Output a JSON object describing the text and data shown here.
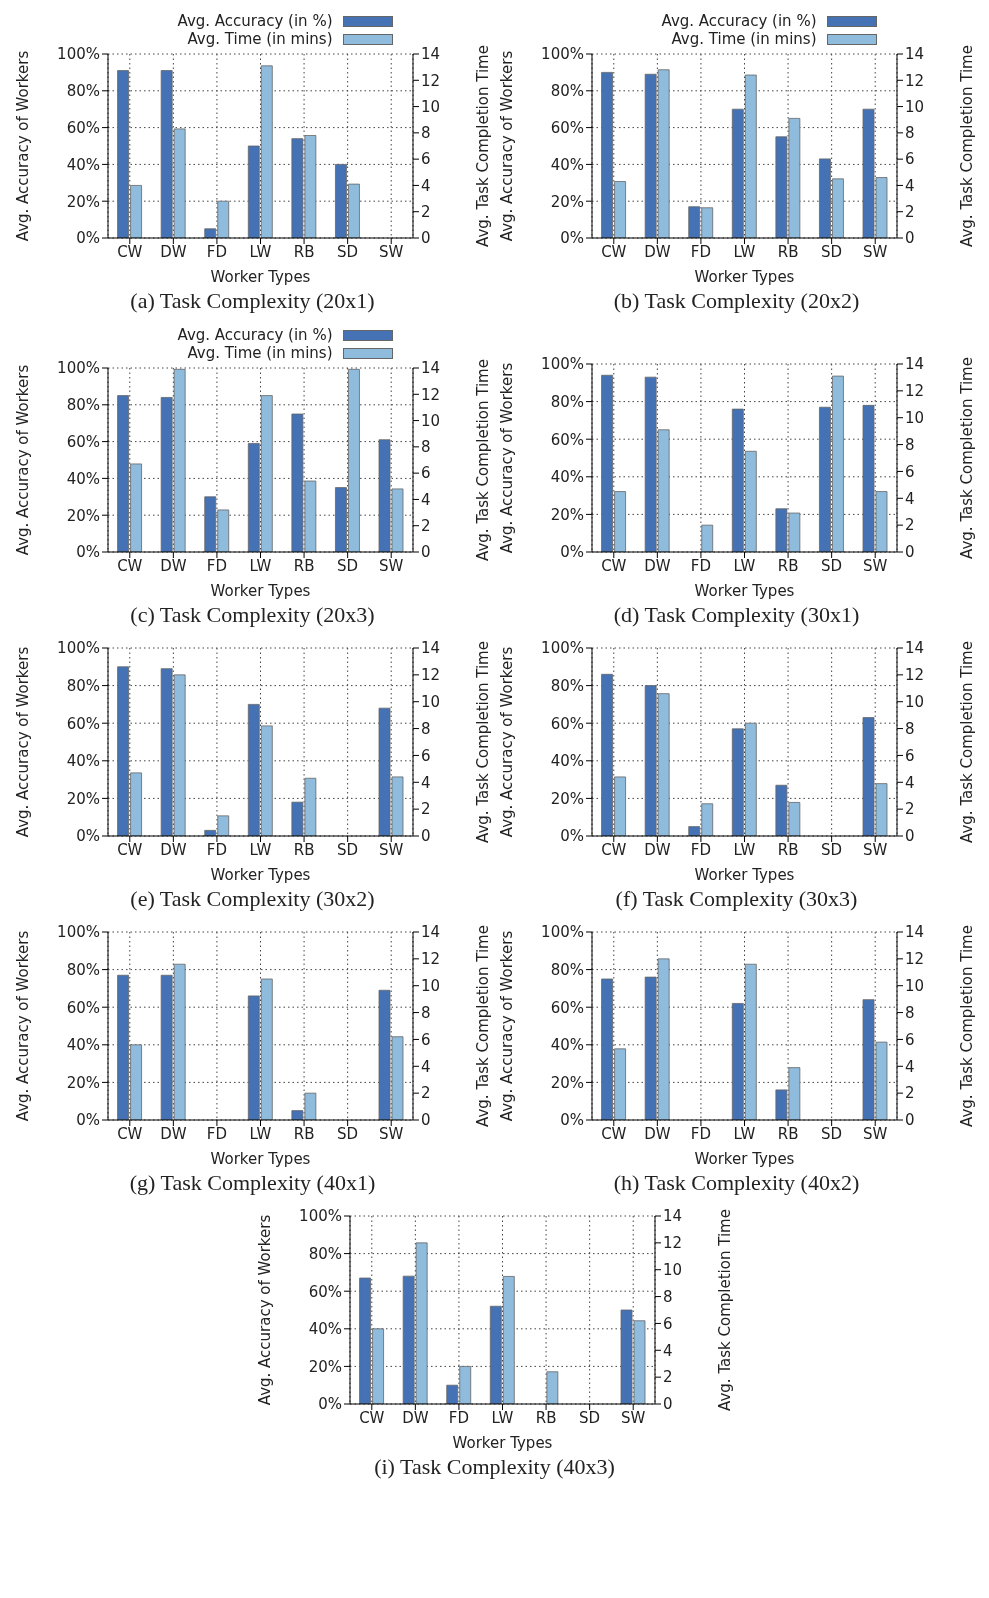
{
  "chart_data": [
    {
      "type": "bar",
      "title": "(a)  Task Complexity (20x1)",
      "xlabel": "Worker Types",
      "ylabel": "Avg. Accuracy of Workers",
      "y2label": "Avg. Task Completion Time",
      "categories": [
        "CW",
        "DW",
        "FD",
        "LW",
        "RB",
        "SD",
        "SW"
      ],
      "series": [
        {
          "name": "Avg. Accuracy (in %)",
          "color": "#4472b4",
          "values": [
            91,
            91,
            5,
            50,
            54,
            40,
            null
          ]
        },
        {
          "name": "Avg. Time (in mins)",
          "color": "#8fbcdc",
          "axis": "y2",
          "values": [
            4.0,
            8.3,
            2.8,
            13.1,
            7.8,
            4.1,
            null
          ]
        }
      ],
      "ylim": [
        0,
        100
      ],
      "yticks": [
        {
          "value": 0,
          "label": "0%"
        },
        {
          "value": 20,
          "label": "20%"
        },
        {
          "value": 40,
          "label": "40%"
        },
        {
          "value": 60,
          "label": "60%"
        },
        {
          "value": 80,
          "label": "80%"
        },
        {
          "value": 100,
          "label": "100%"
        }
      ],
      "y2lim": [
        0,
        14
      ],
      "y2ticks": [
        0,
        2,
        4,
        6,
        8,
        10,
        12,
        14
      ],
      "grid": true,
      "legend": "top right"
    },
    {
      "type": "bar",
      "title": "(b)  Task Complexity (20x2)",
      "xlabel": "Worker Types",
      "ylabel": "Avg. Accuracy of Workers",
      "y2label": "Avg. Task Completion Time",
      "categories": [
        "CW",
        "DW",
        "FD",
        "LW",
        "RB",
        "SD",
        "SW"
      ],
      "series": [
        {
          "name": "Avg. Accuracy (in %)",
          "color": "#4472b4",
          "values": [
            90,
            89,
            17,
            70,
            55,
            43,
            70
          ]
        },
        {
          "name": "Avg. Time (in mins)",
          "color": "#8fbcdc",
          "axis": "y2",
          "values": [
            4.3,
            12.8,
            2.3,
            12.4,
            9.1,
            4.5,
            4.6
          ]
        }
      ],
      "ylim": [
        0,
        100
      ],
      "yticks": [
        {
          "value": 0,
          "label": "0%"
        },
        {
          "value": 20,
          "label": "20%"
        },
        {
          "value": 40,
          "label": "40%"
        },
        {
          "value": 60,
          "label": "60%"
        },
        {
          "value": 80,
          "label": "80%"
        },
        {
          "value": 100,
          "label": "100%"
        }
      ],
      "y2lim": [
        0,
        14
      ],
      "y2ticks": [
        0,
        2,
        4,
        6,
        8,
        10,
        12,
        14
      ],
      "grid": true,
      "legend": "top right"
    },
    {
      "type": "bar",
      "title": "(c)  Task Complexity (20x3)",
      "xlabel": "Worker Types",
      "ylabel": "Avg. Accuracy of Workers",
      "y2label": "Avg. Task Completion Time",
      "categories": [
        "CW",
        "DW",
        "FD",
        "LW",
        "RB",
        "SD",
        "SW"
      ],
      "series": [
        {
          "name": "Avg. Accuracy (in %)",
          "color": "#4472b4",
          "values": [
            85,
            84,
            30,
            59,
            75,
            35,
            61
          ]
        },
        {
          "name": "Avg. Time (in mins)",
          "color": "#8fbcdc",
          "axis": "y2",
          "values": [
            6.7,
            13.9,
            3.2,
            11.9,
            5.4,
            13.9,
            4.8
          ]
        }
      ],
      "ylim": [
        0,
        100
      ],
      "yticks": [
        {
          "value": 0,
          "label": "0%"
        },
        {
          "value": 20,
          "label": "20%"
        },
        {
          "value": 40,
          "label": "40%"
        },
        {
          "value": 60,
          "label": "60%"
        },
        {
          "value": 80,
          "label": "80%"
        },
        {
          "value": 100,
          "label": "100%"
        }
      ],
      "y2lim": [
        0,
        14
      ],
      "y2ticks": [
        0,
        2,
        4,
        6,
        8,
        10,
        12,
        14
      ],
      "grid": true,
      "legend": "top right"
    },
    {
      "type": "bar",
      "title": "(d)  Task Complexity (30x1)",
      "xlabel": "Worker Types",
      "ylabel": "Avg. Accuracy of Workers",
      "y2label": "Avg. Task Completion Time",
      "categories": [
        "CW",
        "DW",
        "FD",
        "LW",
        "RB",
        "SD",
        "SW"
      ],
      "series": [
        {
          "color": "#4472b4",
          "values": [
            94,
            93,
            null,
            76,
            23,
            77,
            78
          ]
        },
        {
          "color": "#8fbcdc",
          "axis": "y2",
          "values": [
            4.5,
            9.1,
            2.0,
            7.5,
            2.9,
            13.1,
            4.5
          ]
        }
      ],
      "ylim": [
        0,
        100
      ],
      "yticks": [
        {
          "value": 0,
          "label": "0%"
        },
        {
          "value": 20,
          "label": "20%"
        },
        {
          "value": 40,
          "label": "40%"
        },
        {
          "value": 60,
          "label": "60%"
        },
        {
          "value": 80,
          "label": "80%"
        },
        {
          "value": 100,
          "label": "100%"
        }
      ],
      "y2lim": [
        0,
        14
      ],
      "y2ticks": [
        0,
        2,
        4,
        6,
        8,
        10,
        12,
        14
      ],
      "grid": true
    },
    {
      "type": "bar",
      "title": "(e)  Task Complexity (30x2)",
      "xlabel": "Worker Types",
      "ylabel": "Avg. Accuracy of Workers",
      "y2label": "Avg. Task Completion Time",
      "categories": [
        "CW",
        "DW",
        "FD",
        "LW",
        "RB",
        "SD",
        "SW"
      ],
      "series": [
        {
          "color": "#4472b4",
          "values": [
            90,
            89,
            3,
            70,
            18,
            null,
            68
          ]
        },
        {
          "color": "#8fbcdc",
          "axis": "y2",
          "values": [
            4.7,
            12.0,
            1.5,
            8.2,
            4.3,
            null,
            4.4
          ]
        }
      ],
      "ylim": [
        0,
        100
      ],
      "yticks": [
        {
          "value": 0,
          "label": "0%"
        },
        {
          "value": 20,
          "label": "20%"
        },
        {
          "value": 40,
          "label": "40%"
        },
        {
          "value": 60,
          "label": "60%"
        },
        {
          "value": 80,
          "label": "80%"
        },
        {
          "value": 100,
          "label": "100%"
        }
      ],
      "y2lim": [
        0,
        14
      ],
      "y2ticks": [
        0,
        2,
        4,
        6,
        8,
        10,
        12,
        14
      ],
      "grid": true
    },
    {
      "type": "bar",
      "title": "(f)  Task Complexity (30x3)",
      "xlabel": "Worker Types",
      "ylabel": "Avg. Accuracy of Workers",
      "y2label": "Avg. Task Completion Time",
      "categories": [
        "CW",
        "DW",
        "FD",
        "LW",
        "RB",
        "SD",
        "SW"
      ],
      "series": [
        {
          "color": "#4472b4",
          "values": [
            86,
            80,
            5,
            57,
            27,
            null,
            63
          ]
        },
        {
          "color": "#8fbcdc",
          "axis": "y2",
          "values": [
            4.4,
            10.6,
            2.4,
            8.4,
            2.5,
            null,
            3.9
          ]
        }
      ],
      "ylim": [
        0,
        100
      ],
      "yticks": [
        {
          "value": 0,
          "label": "0%"
        },
        {
          "value": 20,
          "label": "20%"
        },
        {
          "value": 40,
          "label": "40%"
        },
        {
          "value": 60,
          "label": "60%"
        },
        {
          "value": 80,
          "label": "80%"
        },
        {
          "value": 100,
          "label": "100%"
        }
      ],
      "y2lim": [
        0,
        14
      ],
      "y2ticks": [
        0,
        2,
        4,
        6,
        8,
        10,
        12,
        14
      ],
      "grid": true
    },
    {
      "type": "bar",
      "title": "(g)  Task Complexity (40x1)",
      "xlabel": "Worker Types",
      "ylabel": "Avg. Accuracy of Workers",
      "y2label": "Avg. Task Completion Time",
      "categories": [
        "CW",
        "DW",
        "FD",
        "LW",
        "RB",
        "SD",
        "SW"
      ],
      "series": [
        {
          "color": "#4472b4",
          "values": [
            77,
            77,
            null,
            66,
            5,
            null,
            69
          ]
        },
        {
          "color": "#8fbcdc",
          "axis": "y2",
          "values": [
            5.6,
            11.6,
            null,
            10.5,
            2.0,
            null,
            6.2
          ]
        }
      ],
      "ylim": [
        0,
        100
      ],
      "yticks": [
        {
          "value": 0,
          "label": "0%"
        },
        {
          "value": 20,
          "label": "20%"
        },
        {
          "value": 40,
          "label": "40%"
        },
        {
          "value": 60,
          "label": "60%"
        },
        {
          "value": 80,
          "label": "80%"
        },
        {
          "value": 100,
          "label": "100%"
        }
      ],
      "y2lim": [
        0,
        14
      ],
      "y2ticks": [
        0,
        2,
        4,
        6,
        8,
        10,
        12,
        14
      ],
      "grid": true
    },
    {
      "type": "bar",
      "title": "(h)  Task Complexity (40x2)",
      "xlabel": "Worker Types",
      "ylabel": "Avg. Accuracy of Workers",
      "y2label": "Avg. Task Completion Time",
      "categories": [
        "CW",
        "DW",
        "FD",
        "LW",
        "RB",
        "SD",
        "SW"
      ],
      "series": [
        {
          "color": "#4472b4",
          "values": [
            75,
            76,
            null,
            62,
            16,
            null,
            64
          ]
        },
        {
          "color": "#8fbcdc",
          "axis": "y2",
          "values": [
            5.3,
            12.0,
            null,
            11.6,
            3.9,
            null,
            5.8
          ]
        }
      ],
      "ylim": [
        0,
        100
      ],
      "yticks": [
        {
          "value": 0,
          "label": "0%"
        },
        {
          "value": 20,
          "label": "20%"
        },
        {
          "value": 40,
          "label": "40%"
        },
        {
          "value": 60,
          "label": "60%"
        },
        {
          "value": 80,
          "label": "80%"
        },
        {
          "value": 100,
          "label": "100%"
        }
      ],
      "y2lim": [
        0,
        14
      ],
      "y2ticks": [
        0,
        2,
        4,
        6,
        8,
        10,
        12,
        14
      ],
      "grid": true
    },
    {
      "type": "bar",
      "title": "(i)  Task Complexity (40x3)",
      "xlabel": "Worker Types",
      "ylabel": "Avg. Accuracy of Workers",
      "y2label": "Avg. Task Completion Time",
      "categories": [
        "CW",
        "DW",
        "FD",
        "LW",
        "RB",
        "SD",
        "SW"
      ],
      "series": [
        {
          "color": "#4472b4",
          "values": [
            67,
            68,
            10,
            52,
            null,
            null,
            50
          ]
        },
        {
          "color": "#8fbcdc",
          "axis": "y2",
          "values": [
            5.6,
            12.0,
            2.8,
            9.5,
            2.4,
            null,
            6.2
          ]
        }
      ],
      "ylim": [
        0,
        100
      ],
      "yticks": [
        {
          "value": 0,
          "label": "0%"
        },
        {
          "value": 20,
          "label": "20%"
        },
        {
          "value": 40,
          "label": "40%"
        },
        {
          "value": 60,
          "label": "60%"
        },
        {
          "value": 80,
          "label": "80%"
        },
        {
          "value": 100,
          "label": "100%"
        }
      ],
      "y2lim": [
        0,
        14
      ],
      "y2ticks": [
        0,
        2,
        4,
        6,
        8,
        10,
        12,
        14
      ],
      "grid": true
    }
  ]
}
